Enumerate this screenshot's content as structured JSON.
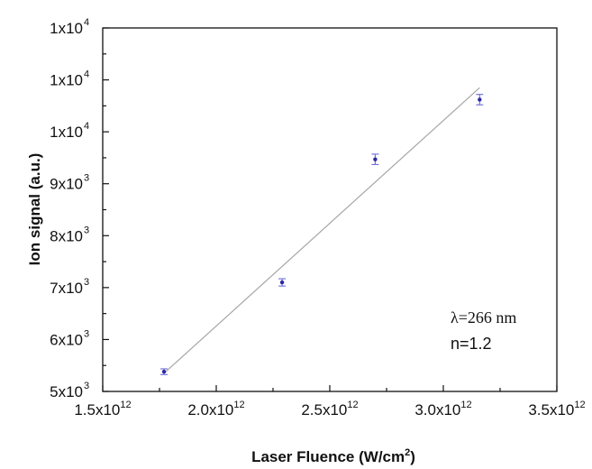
{
  "chart_data": {
    "type": "scatter",
    "title": "",
    "xlabel": {
      "main": "Laser Fluence (W/cm",
      "sup": "2",
      "tail": ")"
    },
    "ylabel": "Ion signal (a.u.)",
    "x_ticks": [
      {
        "value": 1500000000000.0,
        "mantissa": "1.5x10",
        "exp": "12"
      },
      {
        "value": 2000000000000.0,
        "mantissa": "2.0x10",
        "exp": "12"
      },
      {
        "value": 2500000000000.0,
        "mantissa": "2.5x10",
        "exp": "12"
      },
      {
        "value": 3000000000000.0,
        "mantissa": "3.0x10",
        "exp": "12"
      },
      {
        "value": 3500000000000.0,
        "mantissa": "3.5x10",
        "exp": "12"
      }
    ],
    "y_ticks": [
      {
        "value": 5000,
        "mantissa": "5x10",
        "exp": "3"
      },
      {
        "value": 6000,
        "mantissa": "6x10",
        "exp": "3"
      },
      {
        "value": 7000,
        "mantissa": "7x10",
        "exp": "3"
      },
      {
        "value": 8000,
        "mantissa": "8x10",
        "exp": "3"
      },
      {
        "value": 9000,
        "mantissa": "9x10",
        "exp": "3"
      },
      {
        "value": 10000,
        "mantissa": "1x10",
        "exp": "4"
      },
      {
        "value": 11000,
        "mantissa": "1x10",
        "exp": "4"
      },
      {
        "value": 12000,
        "mantissa": "1x10",
        "exp": "4"
      }
    ],
    "xlim": [
      1500000000000.0,
      3500000000000.0
    ],
    "ylim": [
      5000,
      12000
    ],
    "series": [
      {
        "x": [
          1770000000000.0,
          2290000000000.0,
          2700000000000.0,
          3160000000000.0
        ],
        "y": [
          5380,
          7100,
          9470,
          10620
        ],
        "yerr": [
          55,
          70,
          100,
          100
        ]
      }
    ],
    "fit_line": {
      "x": [
        1770000000000.0,
        3160000000000.0
      ],
      "y": [
        5350,
        10850
      ]
    },
    "annotations": [
      {
        "id": "wavelength",
        "text": "λ=266 nm"
      },
      {
        "id": "order",
        "text": "n=1.2"
      }
    ],
    "colors": {
      "marker": "#2a2aa0",
      "errorbar": "#6a6ad8",
      "fit": "#a6a6a6",
      "axis": "#111111"
    },
    "grid": false,
    "legend": "none"
  }
}
